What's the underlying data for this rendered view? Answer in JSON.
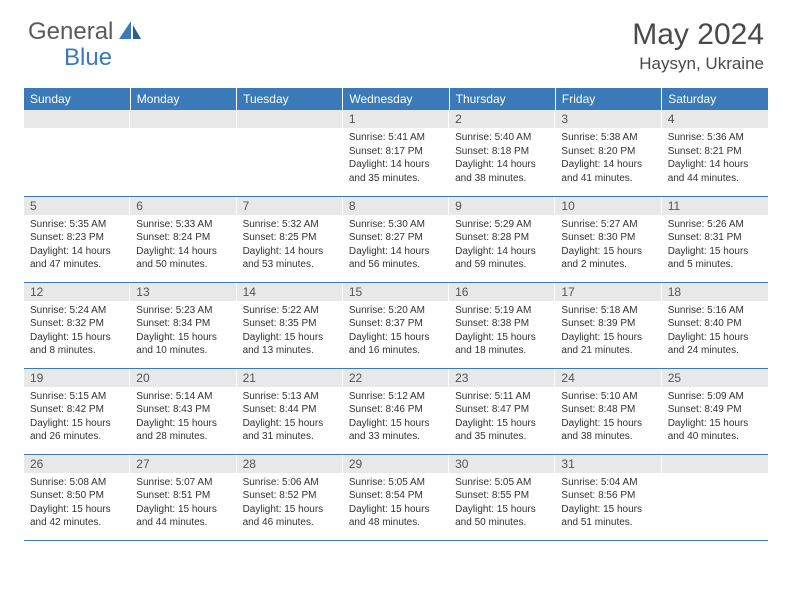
{
  "brand": {
    "part1": "General",
    "part2": "Blue"
  },
  "title": {
    "month": "May 2024",
    "location": "Haysyn, Ukraine"
  },
  "colors": {
    "header_bg": "#3a7ab8",
    "header_text": "#ffffff",
    "daynum_bg": "#e8e8e8",
    "border": "#3a7ab8",
    "brand_gray": "#5a5a5a",
    "brand_blue": "#3a7ab8"
  },
  "weekdays": [
    "Sunday",
    "Monday",
    "Tuesday",
    "Wednesday",
    "Thursday",
    "Friday",
    "Saturday"
  ],
  "weeks": [
    [
      null,
      null,
      null,
      {
        "d": "1",
        "sunrise": "5:41 AM",
        "sunset": "8:17 PM",
        "day_h": 14,
        "day_m": 35
      },
      {
        "d": "2",
        "sunrise": "5:40 AM",
        "sunset": "8:18 PM",
        "day_h": 14,
        "day_m": 38
      },
      {
        "d": "3",
        "sunrise": "5:38 AM",
        "sunset": "8:20 PM",
        "day_h": 14,
        "day_m": 41
      },
      {
        "d": "4",
        "sunrise": "5:36 AM",
        "sunset": "8:21 PM",
        "day_h": 14,
        "day_m": 44
      }
    ],
    [
      {
        "d": "5",
        "sunrise": "5:35 AM",
        "sunset": "8:23 PM",
        "day_h": 14,
        "day_m": 47
      },
      {
        "d": "6",
        "sunrise": "5:33 AM",
        "sunset": "8:24 PM",
        "day_h": 14,
        "day_m": 50
      },
      {
        "d": "7",
        "sunrise": "5:32 AM",
        "sunset": "8:25 PM",
        "day_h": 14,
        "day_m": 53
      },
      {
        "d": "8",
        "sunrise": "5:30 AM",
        "sunset": "8:27 PM",
        "day_h": 14,
        "day_m": 56
      },
      {
        "d": "9",
        "sunrise": "5:29 AM",
        "sunset": "8:28 PM",
        "day_h": 14,
        "day_m": 59
      },
      {
        "d": "10",
        "sunrise": "5:27 AM",
        "sunset": "8:30 PM",
        "day_h": 15,
        "day_m": 2
      },
      {
        "d": "11",
        "sunrise": "5:26 AM",
        "sunset": "8:31 PM",
        "day_h": 15,
        "day_m": 5
      }
    ],
    [
      {
        "d": "12",
        "sunrise": "5:24 AM",
        "sunset": "8:32 PM",
        "day_h": 15,
        "day_m": 8
      },
      {
        "d": "13",
        "sunrise": "5:23 AM",
        "sunset": "8:34 PM",
        "day_h": 15,
        "day_m": 10
      },
      {
        "d": "14",
        "sunrise": "5:22 AM",
        "sunset": "8:35 PM",
        "day_h": 15,
        "day_m": 13
      },
      {
        "d": "15",
        "sunrise": "5:20 AM",
        "sunset": "8:37 PM",
        "day_h": 15,
        "day_m": 16
      },
      {
        "d": "16",
        "sunrise": "5:19 AM",
        "sunset": "8:38 PM",
        "day_h": 15,
        "day_m": 18
      },
      {
        "d": "17",
        "sunrise": "5:18 AM",
        "sunset": "8:39 PM",
        "day_h": 15,
        "day_m": 21
      },
      {
        "d": "18",
        "sunrise": "5:16 AM",
        "sunset": "8:40 PM",
        "day_h": 15,
        "day_m": 24
      }
    ],
    [
      {
        "d": "19",
        "sunrise": "5:15 AM",
        "sunset": "8:42 PM",
        "day_h": 15,
        "day_m": 26
      },
      {
        "d": "20",
        "sunrise": "5:14 AM",
        "sunset": "8:43 PM",
        "day_h": 15,
        "day_m": 28
      },
      {
        "d": "21",
        "sunrise": "5:13 AM",
        "sunset": "8:44 PM",
        "day_h": 15,
        "day_m": 31
      },
      {
        "d": "22",
        "sunrise": "5:12 AM",
        "sunset": "8:46 PM",
        "day_h": 15,
        "day_m": 33
      },
      {
        "d": "23",
        "sunrise": "5:11 AM",
        "sunset": "8:47 PM",
        "day_h": 15,
        "day_m": 35
      },
      {
        "d": "24",
        "sunrise": "5:10 AM",
        "sunset": "8:48 PM",
        "day_h": 15,
        "day_m": 38
      },
      {
        "d": "25",
        "sunrise": "5:09 AM",
        "sunset": "8:49 PM",
        "day_h": 15,
        "day_m": 40
      }
    ],
    [
      {
        "d": "26",
        "sunrise": "5:08 AM",
        "sunset": "8:50 PM",
        "day_h": 15,
        "day_m": 42
      },
      {
        "d": "27",
        "sunrise": "5:07 AM",
        "sunset": "8:51 PM",
        "day_h": 15,
        "day_m": 44
      },
      {
        "d": "28",
        "sunrise": "5:06 AM",
        "sunset": "8:52 PM",
        "day_h": 15,
        "day_m": 46
      },
      {
        "d": "29",
        "sunrise": "5:05 AM",
        "sunset": "8:54 PM",
        "day_h": 15,
        "day_m": 48
      },
      {
        "d": "30",
        "sunrise": "5:05 AM",
        "sunset": "8:55 PM",
        "day_h": 15,
        "day_m": 50
      },
      {
        "d": "31",
        "sunrise": "5:04 AM",
        "sunset": "8:56 PM",
        "day_h": 15,
        "day_m": 51
      },
      null
    ]
  ],
  "labels": {
    "sunrise": "Sunrise:",
    "sunset": "Sunset:",
    "daylight_prefix": "Daylight:",
    "hours_word": "hours",
    "and_word": "and",
    "minutes_word": "minutes."
  }
}
